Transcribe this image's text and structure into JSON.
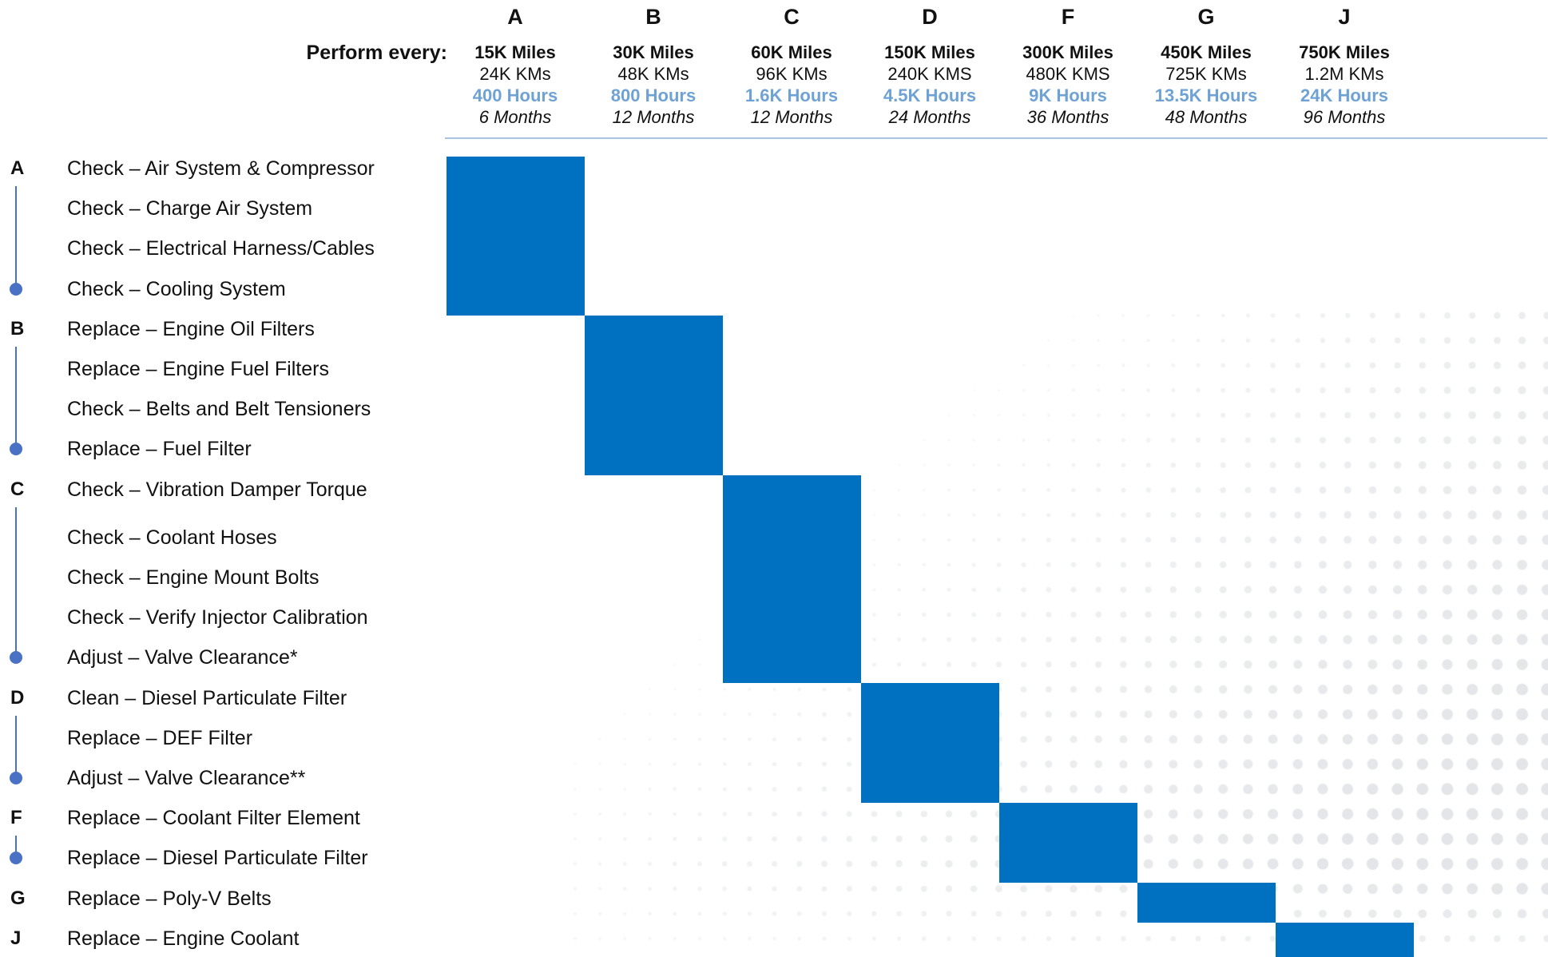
{
  "header": {
    "perform_label": "Perform every:"
  },
  "intervals": [
    {
      "letter": "A",
      "miles": "15K Miles",
      "kms": "24K KMs",
      "hours": "400 Hours",
      "months": "6 Months"
    },
    {
      "letter": "B",
      "miles": "30K Miles",
      "kms": "48K KMs",
      "hours": "800 Hours",
      "months": "12 Months"
    },
    {
      "letter": "C",
      "miles": "60K Miles",
      "kms": "96K KMs",
      "hours": "1.6K Hours",
      "months": "12 Months"
    },
    {
      "letter": "D",
      "miles": "150K Miles",
      "kms": "240K KMS",
      "hours": "4.5K Hours",
      "months": "24 Months"
    },
    {
      "letter": "F",
      "miles": "300K Miles",
      "kms": "480K KMS",
      "hours": "9K Hours",
      "months": "36 Months"
    },
    {
      "letter": "G",
      "miles": "450K Miles",
      "kms": "725K KMs",
      "hours": "13.5K Hours",
      "months": "48 Months"
    },
    {
      "letter": "J",
      "miles": "750K Miles",
      "kms": "1.2M KMs",
      "hours": "24K Hours",
      "months": "96 Months"
    }
  ],
  "groups": [
    {
      "letter": "A",
      "tasks": [
        "Check – Air System & Compressor",
        "Check – Charge Air System",
        "Check – Electrical Harness/Cables",
        "Check – Cooling System"
      ]
    },
    {
      "letter": "B",
      "tasks": [
        "Replace – Engine Oil Filters",
        "Replace – Engine Fuel Filters",
        "Check – Belts and Belt Tensioners",
        "Replace – Fuel Filter"
      ]
    },
    {
      "letter": "C",
      "tasks": [
        "Check – Vibration Damper Torque",
        "Check – Coolant Hoses",
        "Check – Engine Mount Bolts",
        "Check – Verify Injector Calibration",
        "Adjust – Valve Clearance*"
      ]
    },
    {
      "letter": "D",
      "tasks": [
        "Clean – Diesel Particulate Filter",
        "Replace – DEF Filter",
        "Adjust – Valve Clearance**"
      ]
    },
    {
      "letter": "F",
      "tasks": [
        "Replace – Coolant Filter Element",
        "Replace – Diesel Particulate Filter"
      ]
    },
    {
      "letter": "G",
      "tasks": [
        "Replace – Poly-V Belts"
      ]
    },
    {
      "letter": "J",
      "tasks": [
        "Replace – Engine Coolant"
      ]
    }
  ],
  "colors": {
    "block": "#0071C1",
    "hours_text": "#6FA2D4",
    "timeline": "#4A72C4",
    "rule": "#A9C4DE",
    "dots": "#E4E5E8",
    "text": "#111111"
  }
}
